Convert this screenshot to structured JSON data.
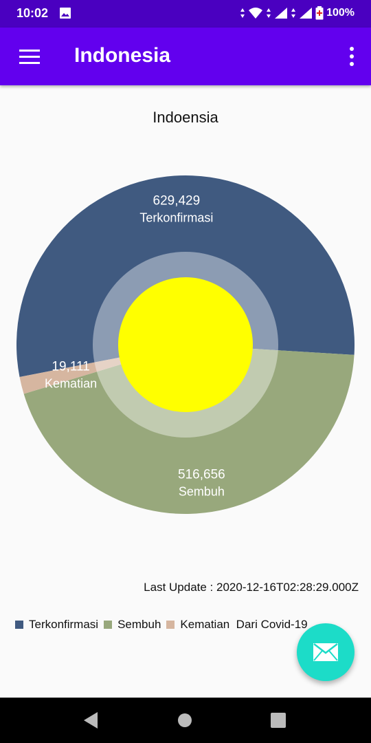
{
  "status_bar": {
    "time": "10:02",
    "battery": "100%"
  },
  "app_bar": {
    "title": "Indonesia"
  },
  "chart_data": {
    "type": "pie",
    "title": "Indoensia",
    "slices": [
      {
        "label": "Terkonfirmasi",
        "value": 629429,
        "value_text": "629,429",
        "color": "#405a80"
      },
      {
        "label": "Sembuh",
        "value": 516656,
        "value_text": "516,656",
        "color": "#98a87c"
      },
      {
        "label": "Kematian",
        "value": 19111,
        "value_text": "19,111",
        "color": "#d6b6a0"
      }
    ],
    "center_hole_color": "#ffff00",
    "legend": [
      "Terkonfirmasi",
      "Sembuh",
      "Kematian  Dari Covid-19"
    ],
    "legend_colors": [
      "#405a80",
      "#98a87c",
      "#d6b6a0"
    ]
  },
  "last_update": "Last Update : 2020-12-16T02:28:29.000Z",
  "colors": {
    "status_bar": "#4a00c0",
    "app_bar": "#6200ee",
    "fab": "#1cdcc8"
  },
  "icons": {
    "menu": "menu-icon",
    "more": "more-vert-icon",
    "fab": "mail-icon",
    "nav": [
      "back-icon",
      "home-icon",
      "recents-icon"
    ]
  }
}
